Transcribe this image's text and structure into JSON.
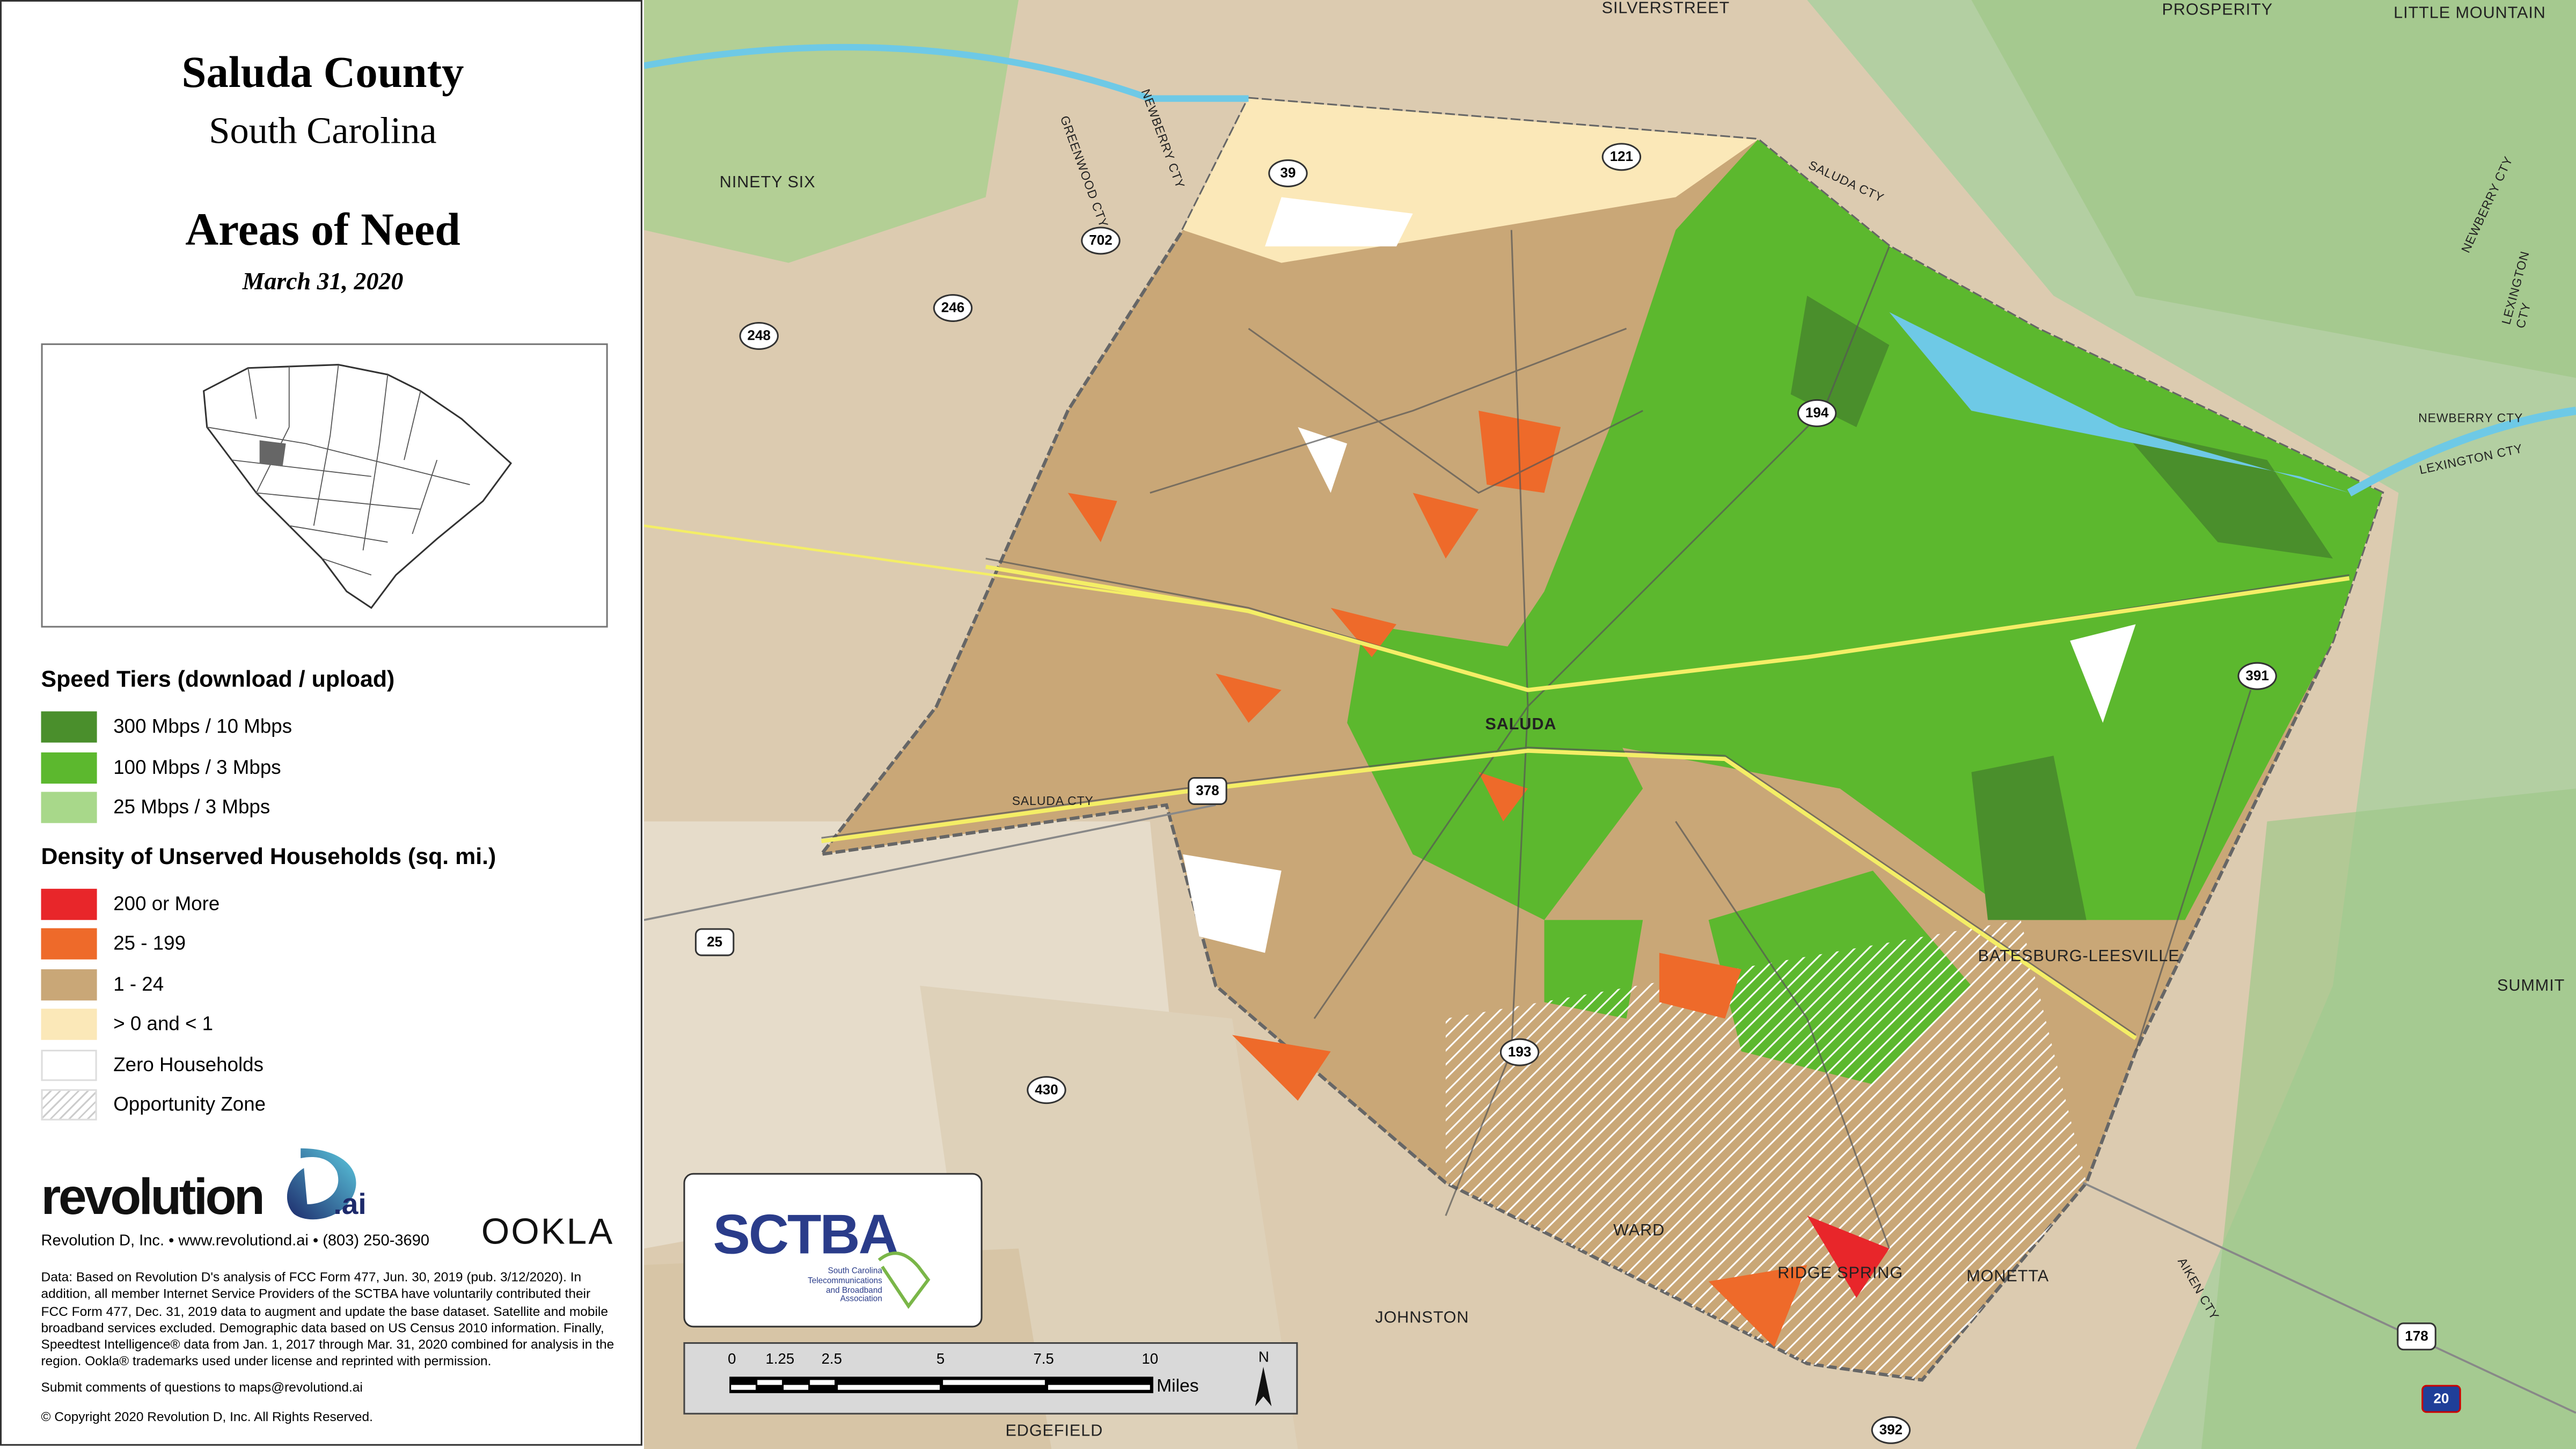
{
  "title": {
    "county": "Saluda County",
    "state": "South Carolina",
    "heading": "Areas of Need",
    "date": "March 31, 2020"
  },
  "legend": {
    "speed_heading": "Speed Tiers (download / upload)",
    "speed_tiers": [
      {
        "label": "300 Mbps / 10 Mbps",
        "color": "#4a8f2c"
      },
      {
        "label": "100 Mbps / 3 Mbps",
        "color": "#5cb82e"
      },
      {
        "label": "25 Mbps / 3 Mbps",
        "color": "#a8d88a"
      }
    ],
    "density_heading": "Density of Unserved Households (sq. mi.)",
    "density": [
      {
        "label": "200 or More",
        "color": "#e8262a"
      },
      {
        "label": "25 - 199",
        "color": "#ee6a2a"
      },
      {
        "label": "1 - 24",
        "color": "#c9a777"
      },
      {
        "label": "> 0 and < 1",
        "color": "#fbe8b8"
      },
      {
        "label": "Zero Households",
        "color": "#ffffff"
      },
      {
        "label": "Opportunity Zone",
        "color": "hatched"
      }
    ]
  },
  "branding": {
    "revolution_logo": "revolution D .ai",
    "contact": "Revolution D, Inc. • www.revolutiond.ai • (803) 250-3690",
    "ookla_logo": "OOKLA",
    "sctba_logo": "SCTBA",
    "sctba_sub": "South Carolina Telecommunications and Broadband Association"
  },
  "notes": {
    "data": "Data: Based on Revolution D's analysis of FCC Form 477, Jun. 30, 2019 (pub. 3/12/2020). In addition, all member Internet Service Providers of the SCTBA have voluntarily contributed their FCC Form 477, Dec. 31, 2019 data to augment and update the base dataset. Satellite and mobile broadband services excluded. Demographic data based on US Census 2010 information. Finally, Speedtest Intelligence® data from Jan. 1, 2017 through Mar. 31, 2020 combined for analysis in the region. Ookla® trademarks used under license and reprinted with permission.",
    "comments": "Submit comments of questions to maps@revolutiond.ai",
    "copyright": "© Copyright 2020 Revolution D, Inc. All Rights Reserved."
  },
  "scale_bar": {
    "ticks": [
      "0",
      "1.25",
      "2.5",
      "5",
      "7.5",
      "10"
    ],
    "unit": "Miles",
    "north": "N"
  },
  "places": [
    "SILVERSTREET",
    "PROSPERITY",
    "LITTLE MOUNTAIN",
    "NINETY SIX",
    "SALUDA CTY",
    "NEWBERRY CTY",
    "GREENWOOD CTY",
    "NEWBERRY CTY",
    "LEXINGTON CTY",
    "SALUDA",
    "SALUDA CTY",
    "BATESBURG-LEESVILLE",
    "SUMMIT",
    "WARD",
    "RIDGE SPRING",
    "MONETTA",
    "JOHNSTON",
    "EDGEFIELD",
    "AIKEN CTY",
    "LEXINGTON CTY",
    "NEWBERRY CTY"
  ],
  "routes": [
    "39",
    "121",
    "702",
    "246",
    "248",
    "194",
    "391",
    "378",
    "25",
    "193",
    "430",
    "392",
    "178",
    "20"
  ]
}
